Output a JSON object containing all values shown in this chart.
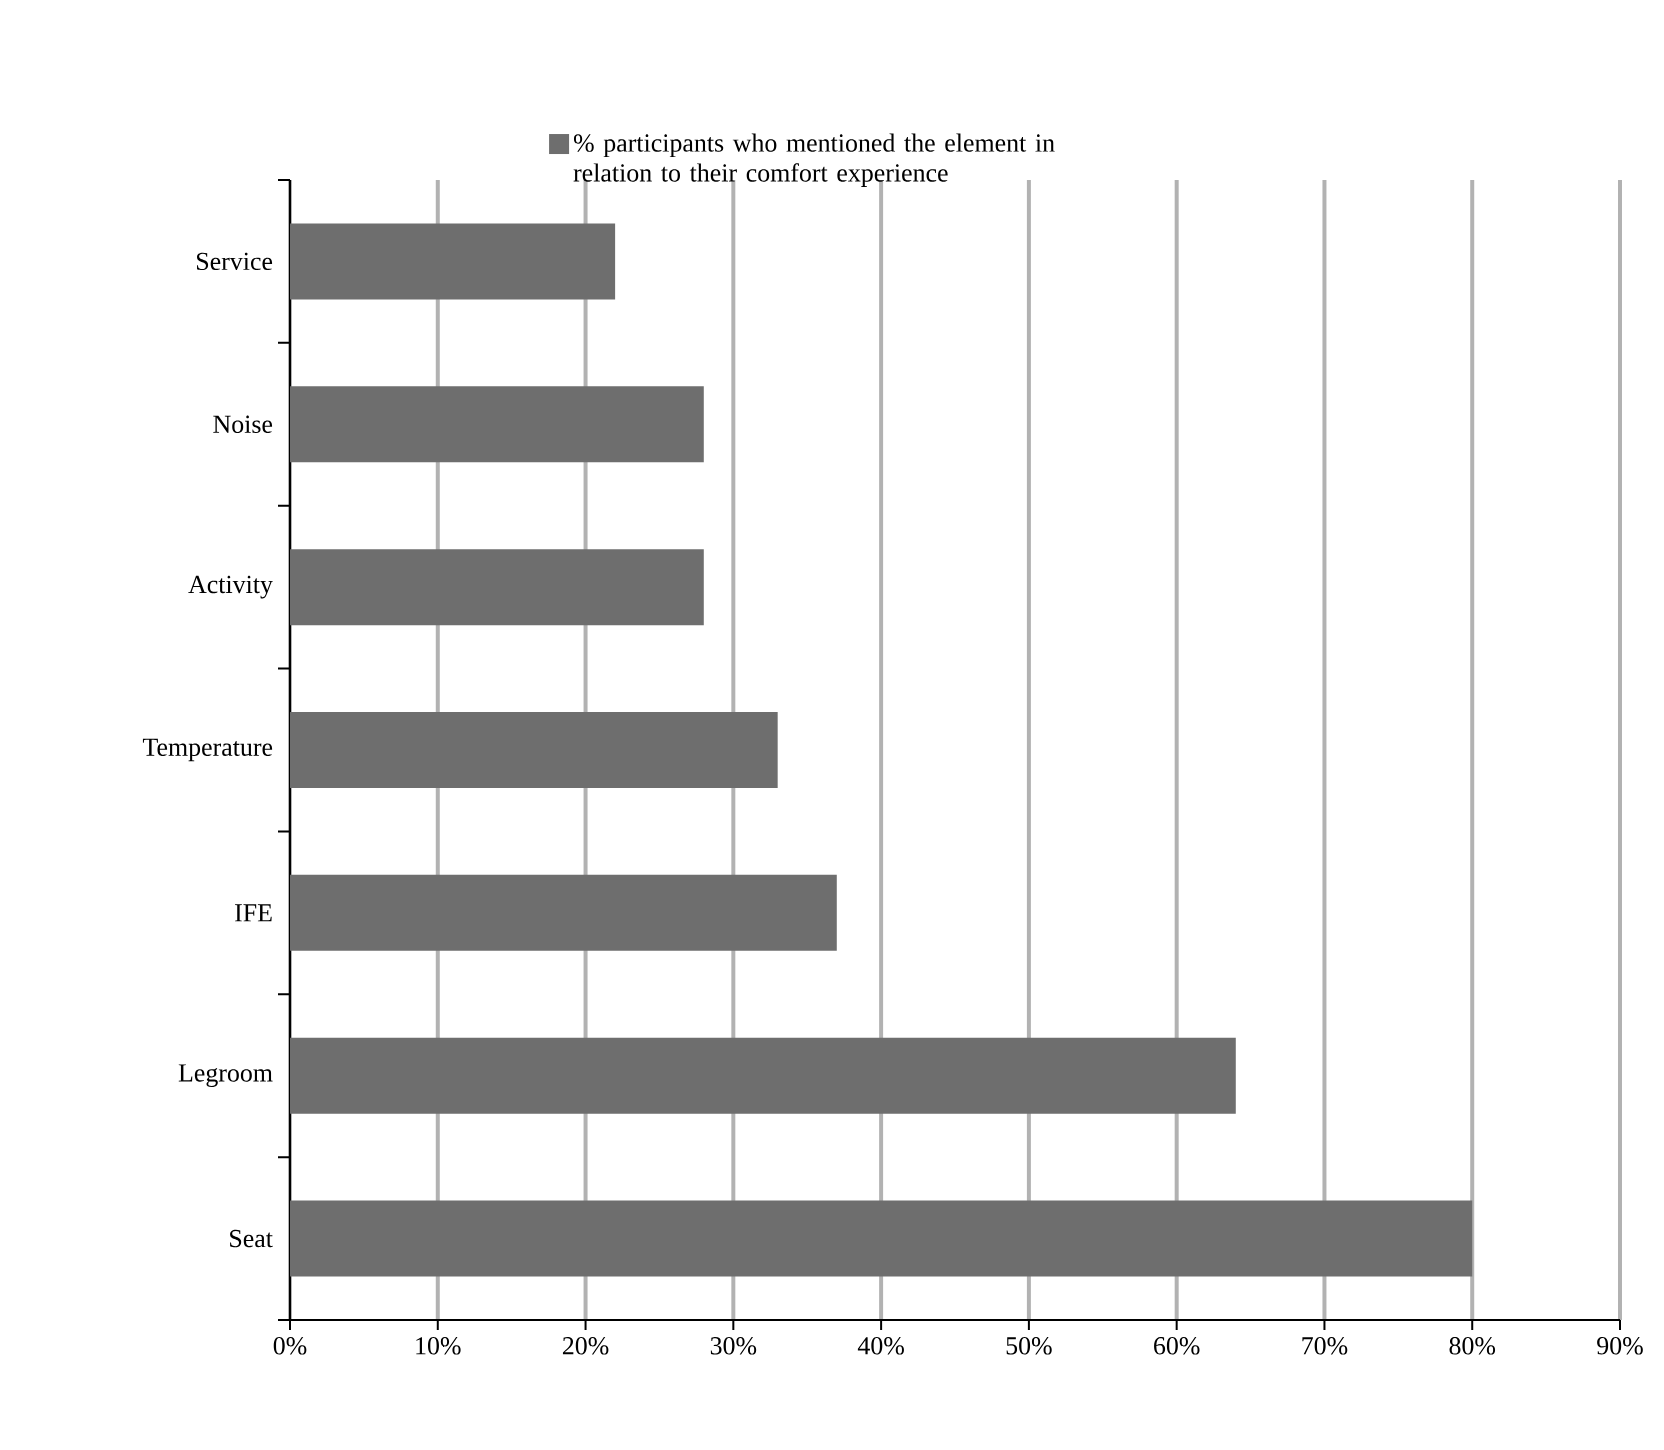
{
  "chart_data": {
    "type": "bar",
    "orientation": "horizontal",
    "categories": [
      "Service",
      "Noise",
      "Activity",
      "Temperature",
      "IFE",
      "Legroom",
      "Seat"
    ],
    "series": [
      {
        "name": "% participants who mentioned the element in relation to their comfort experience",
        "color": "#6e6e6e",
        "values": [
          22,
          28,
          28,
          33,
          37,
          64,
          80
        ]
      }
    ],
    "xlim": [
      0,
      90
    ],
    "xticks": [
      {
        "value": 0,
        "label": "0%"
      },
      {
        "value": 10,
        "label": "10%"
      },
      {
        "value": 20,
        "label": "20%"
      },
      {
        "value": 30,
        "label": "30%"
      },
      {
        "value": 40,
        "label": "40%"
      },
      {
        "value": 50,
        "label": "50%"
      },
      {
        "value": 60,
        "label": "60%"
      },
      {
        "value": 70,
        "label": "70%"
      },
      {
        "value": 80,
        "label": "80%"
      },
      {
        "value": 90,
        "label": "90%"
      }
    ],
    "grid": "x",
    "legend": "top"
  }
}
